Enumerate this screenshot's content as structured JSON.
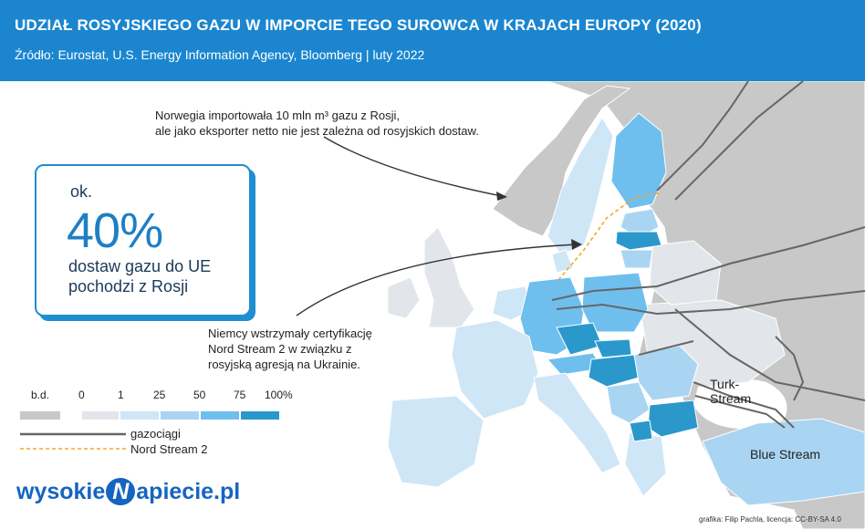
{
  "header": {
    "title": "UDZIAŁ ROSYJSKIEGO GAZU W IMPORCIE TEGO SUROWCA W KRAJACH EUROPY (2020)",
    "source": "Źródło:  Eurostat, U.S. Energy Information Agency, Bloomberg | luty 2022"
  },
  "annotations": {
    "norway": [
      "Norwegia importowała 10 mln m³ gazu z Rosji,",
      "ale jako eksporter netto nie jest zależna od rosyjskich dostaw."
    ],
    "germany": [
      "Niemcy wstrzymały certyfikację",
      "Nord Stream 2 w związku z",
      "rosyjską agresją na Ukrainie."
    ]
  },
  "highlight_box": {
    "prefix": "ok.",
    "value": "40%",
    "line1": "dostaw gazu do UE",
    "line2": "pochodzi z Rosji"
  },
  "legend": {
    "labels": [
      "b.d.",
      "0",
      "1",
      "25",
      "50",
      "75",
      "100%"
    ],
    "bins": [
      {
        "label": "b.d.",
        "color": "#c8c8c8"
      },
      {
        "label": "0",
        "color": "#e2e6ea"
      },
      {
        "label": "1-25",
        "color": "#cfe6f6"
      },
      {
        "label": "25-50",
        "color": "#a9d5f2"
      },
      {
        "label": "50-75",
        "color": "#6fbfee"
      },
      {
        "label": "75-100",
        "color": "#2b98cb"
      }
    ],
    "pipelines_label": "gazociągi",
    "nordstream_label": "Nord Stream 2"
  },
  "pipelines": {
    "turkstream": [
      "Turk-",
      "Stream"
    ],
    "bluestream": "Blue Stream"
  },
  "colors": {
    "header_bg": "#1b86cf",
    "sea": "#ffffff",
    "nodata": "#c8c8c8",
    "pipeline": "#666666",
    "nordstream": "#f5a623",
    "accent": "#1e7fc4"
  },
  "logo": {
    "before": "wysokie",
    "mark": "N",
    "after": "apiecie.pl"
  },
  "credit": "grafika: Filip Pachla, licencja: CC-BY-SA 4.0"
}
